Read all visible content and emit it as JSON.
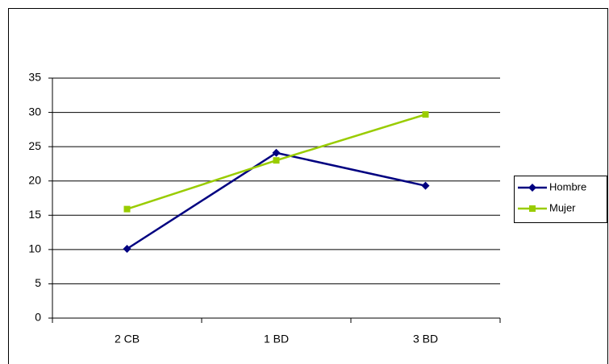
{
  "chart_data": {
    "type": "line",
    "categories": [
      "2 CB",
      "1 BD",
      "3 BD"
    ],
    "series": [
      {
        "name": "Hombre",
        "color": "#000080",
        "marker": "diamond",
        "values": [
          10.1,
          24.1,
          19.3
        ]
      },
      {
        "name": "Mujer",
        "color": "#99cc00",
        "marker": "square",
        "values": [
          15.9,
          23,
          29.7
        ]
      }
    ],
    "ylim": [
      0,
      35
    ],
    "yticks": [
      0,
      5,
      10,
      15,
      20,
      25,
      30,
      35
    ],
    "grid": true,
    "legend": "right"
  }
}
